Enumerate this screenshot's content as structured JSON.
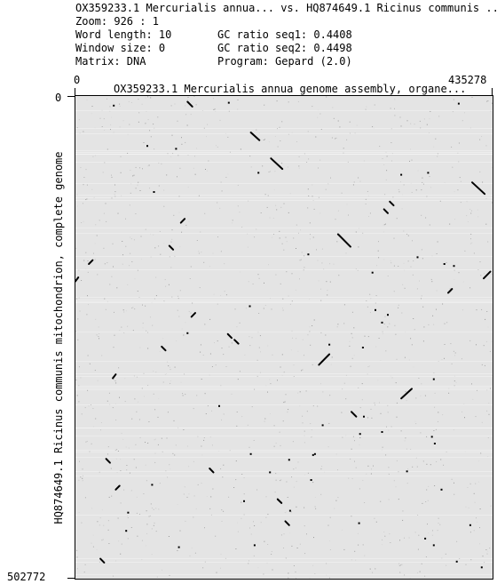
{
  "header": {
    "title": "OX359233.1 Mercurialis annua... vs. HQ874649.1 Ricinus communis ...",
    "zoom": "Zoom: 926 : 1",
    "word_length": "Word length: 10",
    "window_size": "Window size: 0",
    "matrix": "Matrix: DNA",
    "gc_seq1": "GC ratio seq1: 0.4408",
    "gc_seq2": "GC ratio seq2: 0.4498",
    "program": "Program: Gepard (2.0)"
  },
  "plot": {
    "x_start": "0",
    "x_end": "435278",
    "y_start": "0",
    "y_end": "502772",
    "x_title": "OX359233.1 Mercurialis annua genome assembly, organe...",
    "y_title": "HQ874649.1 Ricinus communis mitochondrion, complete genome",
    "background_color": "#e4e4e4",
    "dot_color": "#000000"
  },
  "chart_data": {
    "type": "scatter",
    "title": "OX359233.1 Mercurialis annua... vs. HQ874649.1 Ricinus communis ...",
    "xlabel": "OX359233.1 Mercurialis annua genome assembly, organe...",
    "ylabel": "HQ874649.1 Ricinus communis mitochondrion, complete genome",
    "xlim": [
      0,
      435278
    ],
    "ylim": [
      0,
      502772
    ],
    "y_inverted": true,
    "grid": false,
    "segments": [
      {
        "x": [
          117000,
          122000
        ],
        "y": [
          6000,
          11000
        ]
      },
      {
        "x": [
          183000,
          192000
        ],
        "y": [
          38000,
          46000
        ]
      },
      {
        "x": [
          204000,
          216000
        ],
        "y": [
          65000,
          76000
        ]
      },
      {
        "x": [
          414000,
          427000
        ],
        "y": [
          90000,
          102000
        ]
      },
      {
        "x": [
          328000,
          332000
        ],
        "y": [
          110000,
          114000
        ]
      },
      {
        "x": [
          322000,
          326000
        ],
        "y": [
          118000,
          122000
        ]
      },
      {
        "x": [
          274000,
          287000
        ],
        "y": [
          144000,
          157000
        ]
      },
      {
        "x": [
          110000,
          114000
        ],
        "y": [
          132000,
          128000
        ]
      },
      {
        "x": [
          98000,
          102000
        ],
        "y": [
          156000,
          160000
        ]
      },
      {
        "x": [
          14000,
          18000
        ],
        "y": [
          175000,
          171000
        ]
      },
      {
        "x": [
          3000,
          0
        ],
        "y": [
          189000,
          193000
        ]
      },
      {
        "x": [
          426000,
          433000
        ],
        "y": [
          190000,
          183000
        ]
      },
      {
        "x": [
          389000,
          393000
        ],
        "y": [
          205000,
          201000
        ]
      },
      {
        "x": [
          121000,
          125000
        ],
        "y": [
          230000,
          226000
        ]
      },
      {
        "x": [
          159000,
          163000
        ],
        "y": [
          248000,
          252000
        ]
      },
      {
        "x": [
          166000,
          170000
        ],
        "y": [
          254000,
          258000
        ]
      },
      {
        "x": [
          90000,
          94000
        ],
        "y": [
          261000,
          265000
        ]
      },
      {
        "x": [
          254000,
          265000
        ],
        "y": [
          280000,
          269000
        ]
      },
      {
        "x": [
          340000,
          351000
        ],
        "y": [
          315000,
          305000
        ]
      },
      {
        "x": [
          39000,
          42000
        ],
        "y": [
          294000,
          290000
        ]
      },
      {
        "x": [
          288000,
          293000
        ],
        "y": [
          329000,
          334000
        ]
      },
      {
        "x": [
          32000,
          36000
        ],
        "y": [
          378000,
          382000
        ]
      },
      {
        "x": [
          42000,
          46000
        ],
        "y": [
          410000,
          406000
        ]
      },
      {
        "x": [
          140000,
          144000
        ],
        "y": [
          388000,
          392000
        ]
      },
      {
        "x": [
          211000,
          215000
        ],
        "y": [
          420000,
          424000
        ]
      },
      {
        "x": [
          219000,
          223000
        ],
        "y": [
          443000,
          447000
        ]
      },
      {
        "x": [
          26000,
          30000
        ],
        "y": [
          482000,
          486000
        ]
      }
    ],
    "dots": [
      {
        "x": 40000,
        "y": 10000
      },
      {
        "x": 160000,
        "y": 7000
      },
      {
        "x": 400000,
        "y": 8000
      },
      {
        "x": 75000,
        "y": 52000
      },
      {
        "x": 105000,
        "y": 55000
      },
      {
        "x": 191000,
        "y": 80000
      },
      {
        "x": 82000,
        "y": 100000
      },
      {
        "x": 340000,
        "y": 82000
      },
      {
        "x": 368000,
        "y": 80000
      },
      {
        "x": 243000,
        "y": 165000
      },
      {
        "x": 357000,
        "y": 168000
      },
      {
        "x": 385000,
        "y": 175000
      },
      {
        "x": 395000,
        "y": 177000
      },
      {
        "x": 310000,
        "y": 184000
      },
      {
        "x": 313000,
        "y": 223000
      },
      {
        "x": 182000,
        "y": 219000
      },
      {
        "x": 326000,
        "y": 228000
      },
      {
        "x": 320000,
        "y": 236000
      },
      {
        "x": 117000,
        "y": 247000
      },
      {
        "x": 265000,
        "y": 259000
      },
      {
        "x": 300000,
        "y": 262000
      },
      {
        "x": 374000,
        "y": 295000
      },
      {
        "x": 301000,
        "y": 334000
      },
      {
        "x": 258000,
        "y": 343000
      },
      {
        "x": 297000,
        "y": 352000
      },
      {
        "x": 372000,
        "y": 355000
      },
      {
        "x": 375000,
        "y": 362000
      },
      {
        "x": 150000,
        "y": 323000
      },
      {
        "x": 183000,
        "y": 373000
      },
      {
        "x": 250000,
        "y": 373000
      },
      {
        "x": 223000,
        "y": 379000
      },
      {
        "x": 80000,
        "y": 405000
      },
      {
        "x": 55000,
        "y": 434000
      },
      {
        "x": 224000,
        "y": 432000
      },
      {
        "x": 346000,
        "y": 391000
      },
      {
        "x": 365000,
        "y": 461000
      },
      {
        "x": 248000,
        "y": 374000
      },
      {
        "x": 382000,
        "y": 410000
      },
      {
        "x": 203000,
        "y": 392000
      },
      {
        "x": 176000,
        "y": 422000
      },
      {
        "x": 246000,
        "y": 400000
      },
      {
        "x": 68000,
        "y": 505000
      },
      {
        "x": 108000,
        "y": 470000
      },
      {
        "x": 296000,
        "y": 445000
      },
      {
        "x": 53000,
        "y": 453000
      },
      {
        "x": 374000,
        "y": 468000
      },
      {
        "x": 398000,
        "y": 485000
      },
      {
        "x": 187000,
        "y": 468000
      },
      {
        "x": 320000,
        "y": 350000
      },
      {
        "x": 412000,
        "y": 447000
      },
      {
        "x": 424000,
        "y": 491000
      }
    ]
  }
}
